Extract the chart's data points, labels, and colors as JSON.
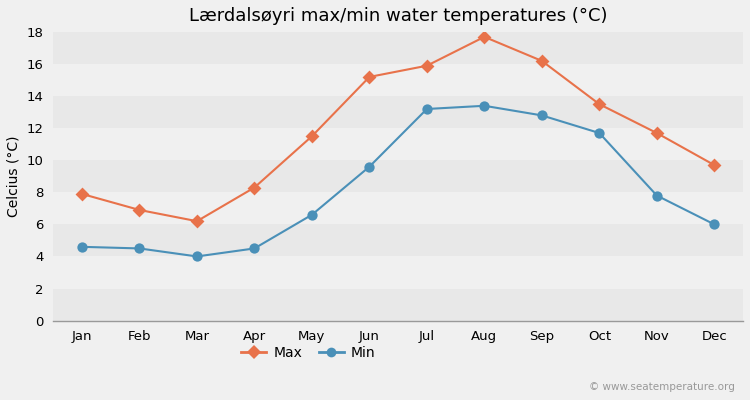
{
  "title": "Lærdalsøyri max/min water temperatures (°C)",
  "ylabel": "Celcius (°C)",
  "months": [
    "Jan",
    "Feb",
    "Mar",
    "Apr",
    "May",
    "Jun",
    "Jul",
    "Aug",
    "Sep",
    "Oct",
    "Nov",
    "Dec"
  ],
  "max_temps": [
    7.9,
    6.9,
    6.2,
    8.3,
    11.5,
    15.2,
    15.9,
    17.7,
    16.2,
    13.5,
    11.7,
    9.7
  ],
  "min_temps": [
    4.6,
    4.5,
    4.0,
    4.5,
    6.6,
    9.6,
    13.2,
    13.4,
    12.8,
    11.7,
    7.8,
    6.0
  ],
  "max_color": "#e8724a",
  "min_color": "#4a90b8",
  "background_color": "#f0f0f0",
  "plot_bg_color": "#f5f5f5",
  "band_colors": [
    "#e8e8e8",
    "#f0f0f0"
  ],
  "ylim": [
    0,
    18
  ],
  "yticks": [
    0,
    2,
    4,
    6,
    8,
    10,
    12,
    14,
    16,
    18
  ],
  "watermark": "© www.seatemperature.org",
  "legend_labels": [
    "Max",
    "Min"
  ],
  "title_fontsize": 13,
  "axis_label_fontsize": 10,
  "tick_fontsize": 9.5
}
